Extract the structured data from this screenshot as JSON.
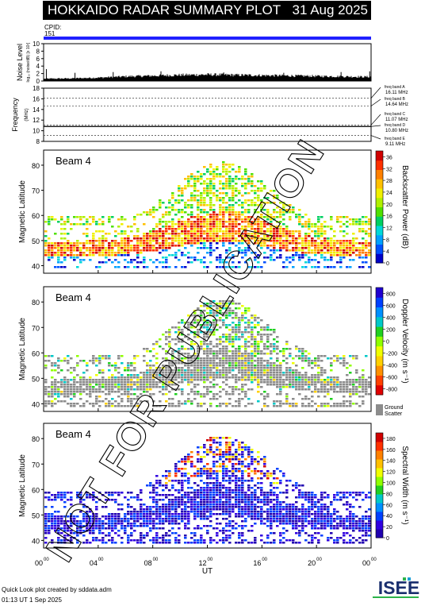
{
  "title": "HOKKAIDO RADAR SUMMARY PLOT",
  "date": "31 Aug 2025",
  "cpid_label": "CPID:",
  "cpid_value": "151",
  "footer_line1": "Quick Look plot created by sddata.adm",
  "footer_line2": "01:13 UT  1 Sep 2025",
  "watermark": "NOT FOR PUBLICATION",
  "logo_text": "ISEE",
  "colors": {
    "cpid_bar": "#2020ff",
    "ground_scatter": "#8c8c8c",
    "watermark": "#000000"
  },
  "chart_data": [
    {
      "type": "area",
      "name": "noise",
      "ylabel": "Noise Level",
      "ylabel_sub": "log₁₀ (noise/dB) [x 10¹]",
      "ylim": [
        0,
        10
      ],
      "yticks": [
        0,
        2,
        4,
        6,
        8,
        10
      ],
      "x_range_hours": [
        0,
        24
      ],
      "baseline_profile": [
        {
          "t": 0,
          "v": 0.6
        },
        {
          "t": 2,
          "v": 0.7
        },
        {
          "t": 4,
          "v": 0.9
        },
        {
          "t": 6,
          "v": 1.2
        },
        {
          "t": 8,
          "v": 1.4
        },
        {
          "t": 10,
          "v": 1.6
        },
        {
          "t": 12,
          "v": 1.7
        },
        {
          "t": 14,
          "v": 1.6
        },
        {
          "t": 16,
          "v": 1.5
        },
        {
          "t": 18,
          "v": 1.4
        },
        {
          "t": 20,
          "v": 1.3
        },
        {
          "t": 22,
          "v": 1.2
        },
        {
          "t": 24,
          "v": 1.1
        }
      ],
      "spikes": [
        {
          "t": 0.2,
          "v": 3.2
        },
        {
          "t": 2.3,
          "v": 2.2
        },
        {
          "t": 5.1,
          "v": 2.4
        },
        {
          "t": 8.6,
          "v": 2.6
        },
        {
          "t": 13.2,
          "v": 2.3
        },
        {
          "t": 17.6,
          "v": 2.2
        },
        {
          "t": 21.8,
          "v": 2.4
        },
        {
          "t": 23.9,
          "v": 2.6
        }
      ]
    },
    {
      "type": "line",
      "name": "frequency",
      "ylabel": "Frequency",
      "ylabel_unit": "(MHz)",
      "ylim": [
        8,
        18
      ],
      "yticks": [
        8,
        10,
        12,
        14,
        16,
        18
      ],
      "bands": [
        {
          "label": "freq band A",
          "freq": "16.11 MHz",
          "value": 16.11
        },
        {
          "label": "freq band B",
          "freq": "14.64 MHz",
          "value": 14.64
        },
        {
          "label": "freq band C",
          "freq": "11.07 MHz",
          "value": 11.07
        },
        {
          "label": "freq band D",
          "freq": "10.80 MHz",
          "value": 10.8
        },
        {
          "label": "freq band E",
          "freq": "9.11 MHz",
          "value": 9.11
        }
      ],
      "operating_freq": 10.8
    },
    {
      "type": "heatmap",
      "name": "power",
      "beam_label": "Beam  4",
      "ylabel": "Magnetic Latitude",
      "ylim": [
        37,
        86
      ],
      "yticks": [
        40,
        50,
        60,
        70,
        80
      ],
      "colorbar_label": "Backscatter Power (dB)",
      "colorbar_ticks": [
        "0",
        "4",
        "8",
        "12",
        "16",
        "20",
        "24",
        "28",
        "32",
        "36"
      ],
      "colorbar_range": [
        0,
        38
      ]
    },
    {
      "type": "heatmap",
      "name": "velocity",
      "beam_label": "Beam  4",
      "ylabel": "Magnetic Latitude",
      "ylim": [
        37,
        86
      ],
      "yticks": [
        40,
        50,
        60,
        70,
        80
      ],
      "colorbar_label": "Doppler Velocity (m s⁻¹)",
      "colorbar_ticks": [
        "-800",
        "-600",
        "-400",
        "-200",
        "0",
        "200",
        "400",
        "600",
        "800"
      ],
      "colorbar_range": [
        -900,
        900
      ],
      "gs_label_1": "Ground",
      "gs_label_2": "Scatter"
    },
    {
      "type": "heatmap",
      "name": "width",
      "beam_label": "Beam  4",
      "ylabel": "Magnetic Latitude",
      "ylim": [
        37,
        86
      ],
      "yticks": [
        40,
        50,
        60,
        70,
        80
      ],
      "colorbar_label": "Spectral Width (m s⁻¹)",
      "colorbar_ticks": [
        "0",
        "20",
        "40",
        "60",
        "80",
        "100",
        "120",
        "140",
        "160",
        "180"
      ],
      "colorbar_range": [
        0,
        190
      ]
    }
  ],
  "x_axis": {
    "xlabel": "UT",
    "ticks": [
      {
        "t": 0,
        "label": "00"
      },
      {
        "t": 4,
        "label": "04"
      },
      {
        "t": 8,
        "label": "08"
      },
      {
        "t": 12,
        "label": "12"
      },
      {
        "t": 16,
        "label": "16"
      },
      {
        "t": 20,
        "label": "20"
      },
      {
        "t": 24,
        "label": "00"
      }
    ],
    "minute_suffix": "00"
  }
}
